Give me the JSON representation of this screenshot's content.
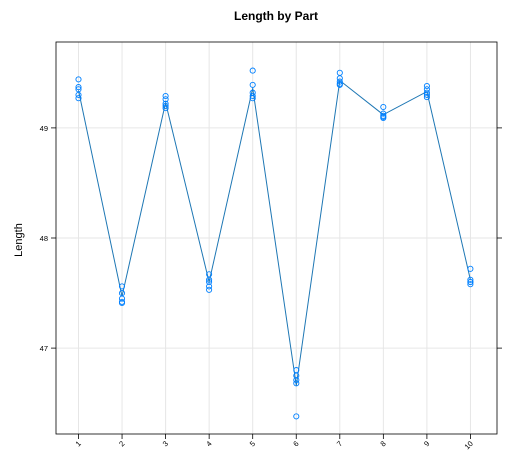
{
  "chart_data": {
    "type": "scatter",
    "title": "Length by Part",
    "xlabel": "",
    "ylabel": "Length",
    "categories": [
      "1",
      "2",
      "3",
      "4",
      "5",
      "6",
      "7",
      "8",
      "9",
      "10"
    ],
    "yticks": [
      47,
      48,
      49
    ],
    "ylim": [
      46.22,
      49.78
    ],
    "grid": true,
    "colors": {
      "series": "#0080ff",
      "line": "#1e77b4",
      "axis": "#000000",
      "grid": "#e6e6e6"
    },
    "points": [
      [
        49.44,
        49.37,
        49.35,
        49.3,
        49.27
      ],
      [
        47.56,
        47.5,
        47.45,
        47.42,
        47.41
      ],
      [
        49.29,
        49.26,
        49.22,
        49.2,
        49.18
      ],
      [
        47.67,
        47.62,
        47.6,
        47.56,
        47.53
      ],
      [
        49.52,
        49.39,
        49.32,
        49.29,
        49.27
      ],
      [
        46.8,
        46.75,
        46.71,
        46.68,
        46.38
      ],
      [
        49.5,
        49.45,
        49.42,
        49.4,
        49.39
      ],
      [
        49.19,
        49.13,
        49.11,
        49.1,
        49.09
      ],
      [
        49.38,
        49.35,
        49.32,
        49.3,
        49.28
      ],
      [
        47.72,
        47.62,
        47.6,
        47.6,
        47.58
      ]
    ],
    "means": [
      49.34,
      47.47,
      49.23,
      47.6,
      49.36,
      46.66,
      49.43,
      49.12,
      49.33,
      47.62
    ]
  }
}
